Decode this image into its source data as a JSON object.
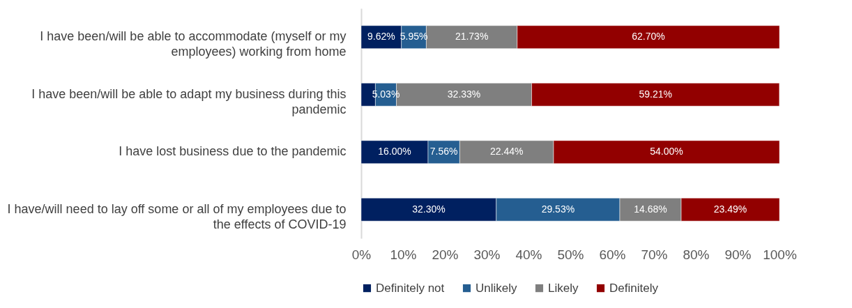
{
  "chart_data": {
    "type": "bar",
    "orientation": "horizontal",
    "stacked": true,
    "categories": [
      "I have been/will be able to accommodate (myself or my employees) working from home",
      "I have been/will be able to adapt my business during this pandemic",
      "I have lost business due to the pandemic",
      "I have/will need to lay off some or all of my employees due to the effects of COVID-19"
    ],
    "series": [
      {
        "name": "Definitely not",
        "color": "#002060",
        "values": [
          9.62,
          3.4,
          16.0,
          32.3
        ],
        "value_labels": [
          "9.62%",
          null,
          "16.00%",
          "32.30%"
        ]
      },
      {
        "name": "Unlikely",
        "color": "#255e91",
        "values": [
          5.95,
          5.03,
          7.56,
          29.53
        ],
        "value_labels": [
          "5.95%",
          "5.03%",
          "7.56%",
          "29.53%"
        ]
      },
      {
        "name": "Likely",
        "color": "#7f7f7f",
        "values": [
          21.73,
          32.33,
          22.44,
          14.68
        ],
        "value_labels": [
          "21.73%",
          "32.33%",
          "22.44%",
          "14.68%"
        ]
      },
      {
        "name": "Definitely",
        "color": "#920000",
        "values": [
          62.7,
          59.21,
          54.0,
          23.49
        ],
        "value_labels": [
          "62.70%",
          "59.21%",
          "54.00%",
          "23.49%"
        ]
      }
    ],
    "xlim": [
      0,
      100
    ],
    "xticks": [
      {
        "value": 0,
        "label": "0%"
      },
      {
        "value": 10,
        "label": "10%"
      },
      {
        "value": 20,
        "label": "20%"
      },
      {
        "value": 30,
        "label": "30%"
      },
      {
        "value": 40,
        "label": "40%"
      },
      {
        "value": 50,
        "label": "50%"
      },
      {
        "value": 60,
        "label": "60%"
      },
      {
        "value": 70,
        "label": "70%"
      },
      {
        "value": 80,
        "label": "80%"
      },
      {
        "value": 90,
        "label": "90%"
      },
      {
        "value": 100,
        "label": "100%"
      }
    ],
    "grid": false,
    "legend": "bottom"
  }
}
